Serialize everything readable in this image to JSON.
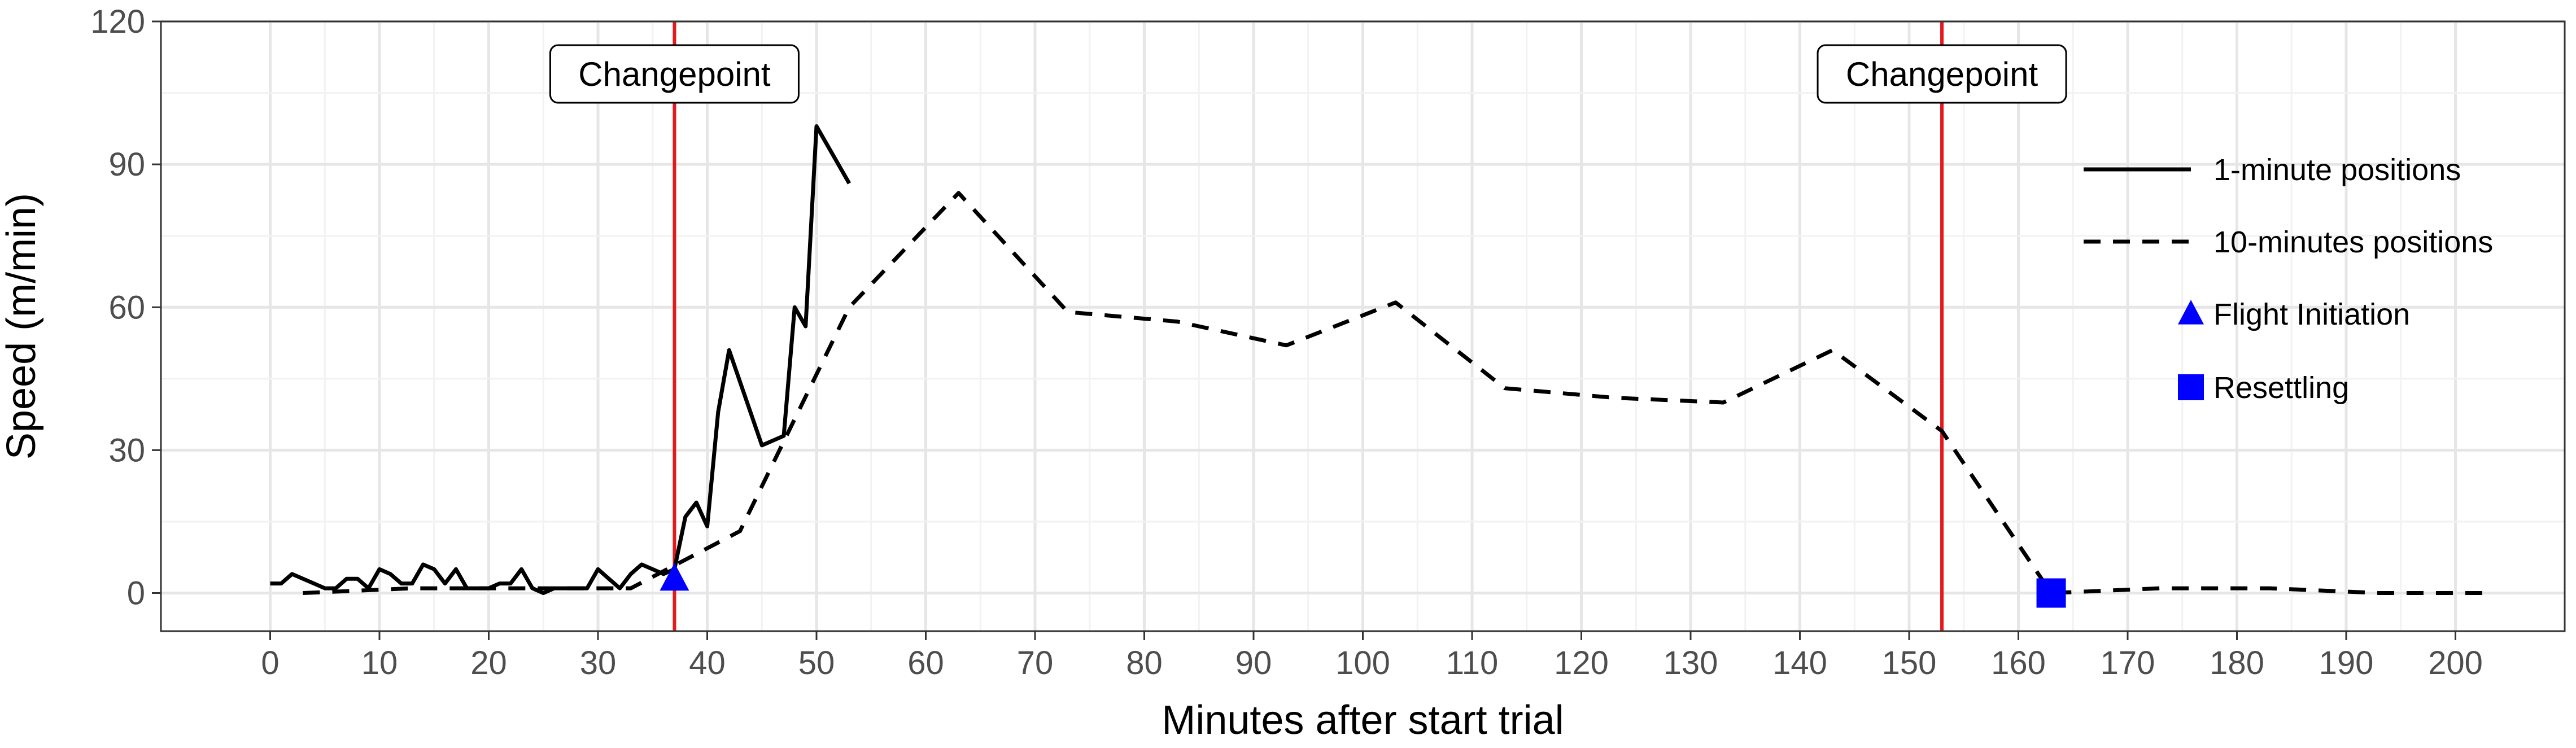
{
  "chart_data": {
    "type": "line",
    "xlabel": "Minutes after start trial",
    "ylabel": "Speed (m/min)",
    "xlim": [
      -10,
      210
    ],
    "ylim": [
      -8,
      120
    ],
    "x_ticks": [
      0,
      10,
      20,
      30,
      40,
      50,
      60,
      70,
      80,
      90,
      100,
      110,
      120,
      130,
      140,
      150,
      160,
      170,
      180,
      190,
      200
    ],
    "y_ticks": [
      0,
      30,
      60,
      90,
      120
    ],
    "x_tick_labels": [
      "0",
      "10",
      "20",
      "30",
      "40",
      "50",
      "60",
      "70",
      "80",
      "90",
      "100",
      "110",
      "120",
      "130",
      "140",
      "150",
      "160",
      "170",
      "180",
      "190",
      "200"
    ],
    "y_tick_labels": [
      "0",
      "30",
      "60",
      "90",
      "120"
    ],
    "grid": true,
    "legend_position": "right",
    "series": [
      {
        "name": "1-minute positions",
        "style": "solid",
        "color": "#000000",
        "x": [
          0,
          1,
          2,
          3,
          4,
          5,
          6,
          7,
          8,
          9,
          10,
          11,
          12,
          13,
          14,
          15,
          16,
          17,
          18,
          19,
          20,
          21,
          22,
          23,
          24,
          25,
          26,
          27,
          28,
          29,
          30,
          31,
          32,
          33,
          34,
          35,
          36,
          37,
          38,
          39,
          40,
          41,
          42,
          45,
          47,
          48,
          49,
          50,
          53
        ],
        "y": [
          2,
          2,
          4,
          3,
          2,
          1,
          1,
          3,
          3,
          1,
          5,
          4,
          2,
          2,
          6,
          5,
          2,
          5,
          1,
          1,
          1,
          2,
          2,
          5,
          1,
          0,
          1,
          1,
          1,
          1,
          5,
          3,
          1,
          4,
          6,
          5,
          4,
          5,
          16,
          19,
          14,
          38,
          51,
          31,
          33,
          60,
          56,
          98,
          86
        ]
      },
      {
        "name": "10-minutes positions",
        "style": "dashed",
        "color": "#000000",
        "x": [
          3,
          13,
          23,
          33,
          43,
          53,
          63,
          73,
          83,
          93,
          103,
          113,
          123,
          133,
          143,
          153,
          163,
          173,
          183,
          193,
          203
        ],
        "y": [
          0,
          1,
          1,
          1,
          13,
          60,
          84,
          59,
          57,
          52,
          61,
          43,
          41,
          40,
          51,
          34,
          0,
          1,
          1,
          0,
          0
        ]
      }
    ],
    "markers": [
      {
        "name": "Flight Initiation",
        "shape": "triangle",
        "color": "#0000ff",
        "x": 37,
        "y": 3
      },
      {
        "name": "Resettling",
        "shape": "square",
        "color": "#0000ff",
        "x": 163,
        "y": 0
      }
    ],
    "vlines": [
      {
        "x": 37,
        "color": "#e31a1c",
        "label": "Changepoint"
      },
      {
        "x": 153,
        "color": "#e31a1c",
        "label": "Changepoint"
      }
    ]
  }
}
